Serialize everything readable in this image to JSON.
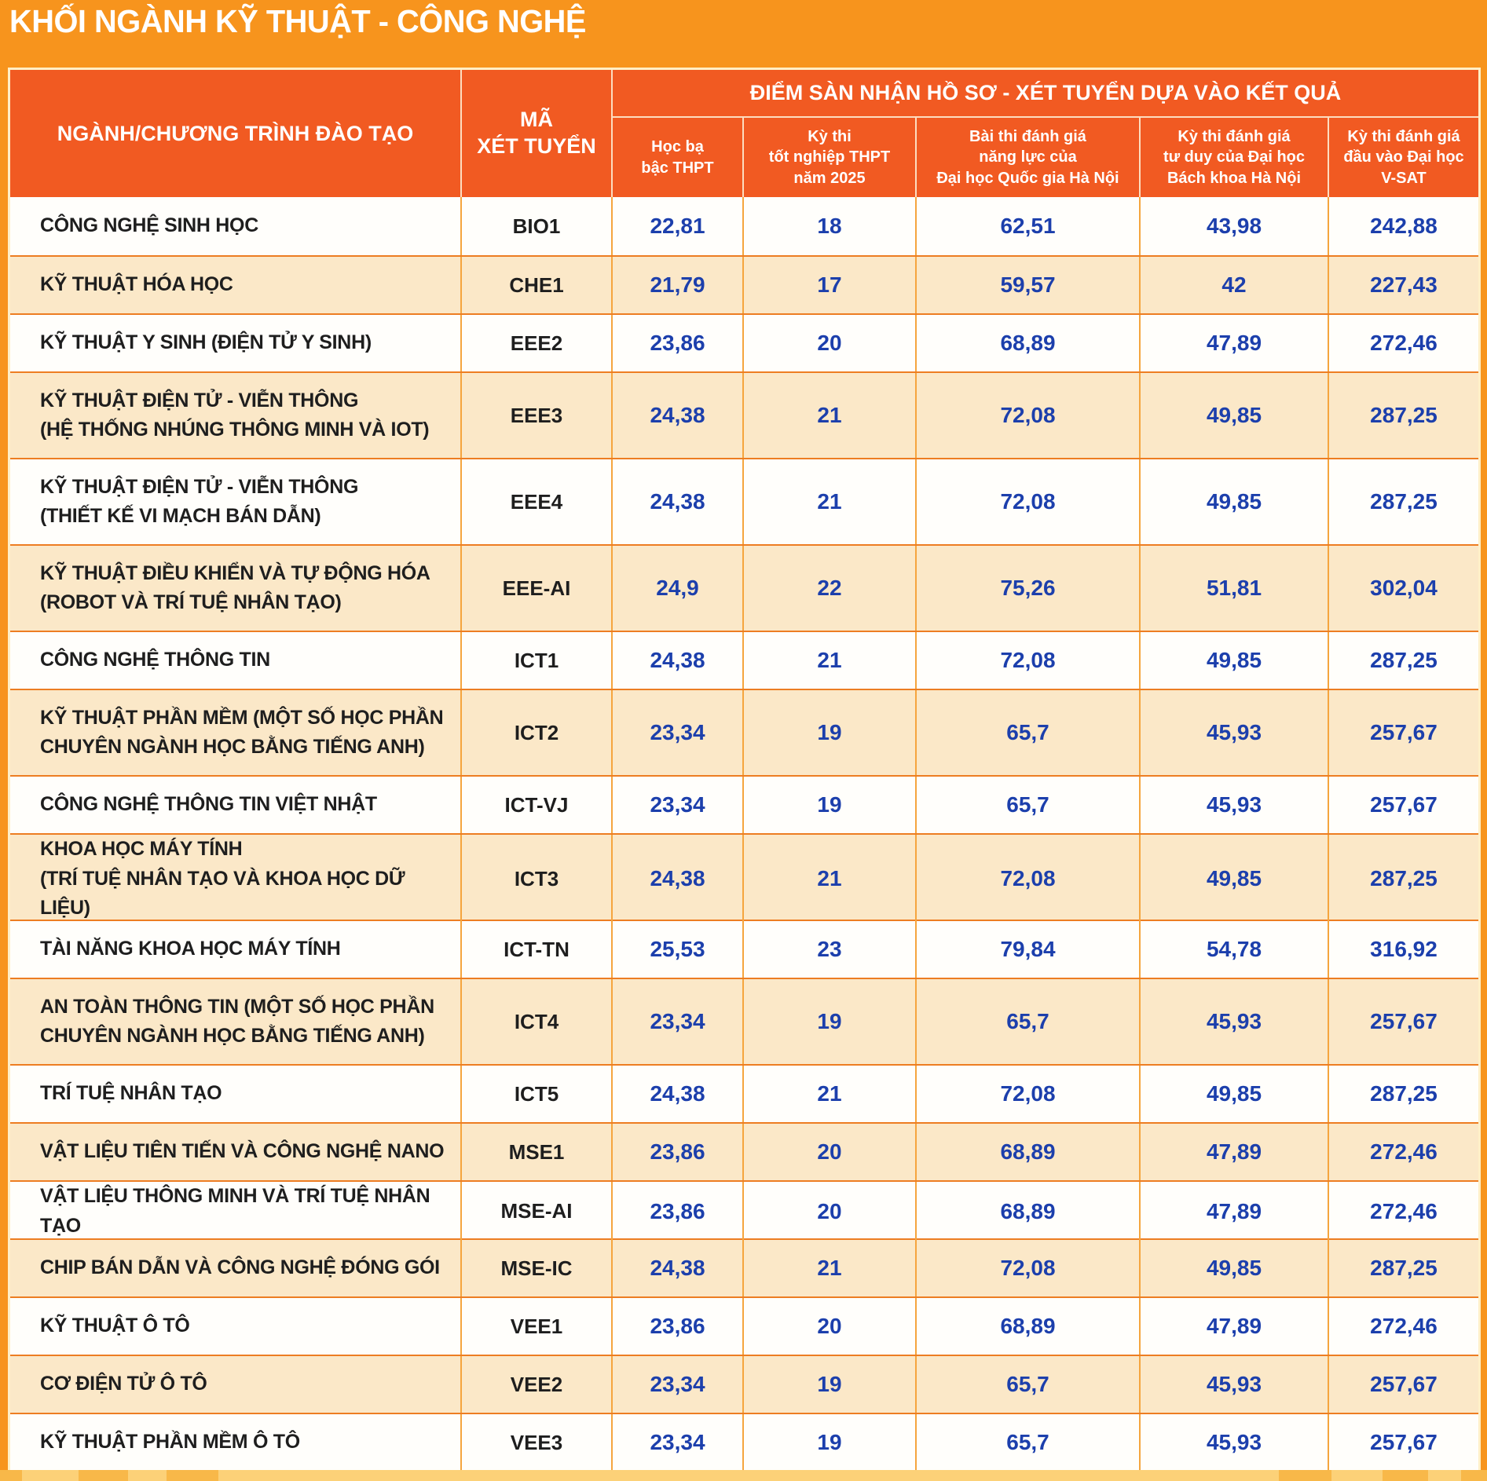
{
  "title": "KHỐI NGÀNH KỸ THUẬT - CÔNG NGHỆ",
  "colors": {
    "page_bg": "#F7941D",
    "header_bg": "#F15A22",
    "row_white": "#FFFEFB",
    "row_cream": "#FBE8C8",
    "value_blue": "#1C3FAC",
    "label_dark": "#1E1E1E",
    "outer_border": "#FFEFC6",
    "row_divider": "#ED7D22",
    "col_divider": "#F5A53E",
    "footer_strip": "#FCD178",
    "footer_tile": "#F8B849"
  },
  "table": {
    "col1_header": "NGÀNH/CHƯƠNG TRÌNH ĐÀO TẠO",
    "col2_header": "MÃ\nXÉT TUYỂN",
    "group_header": "ĐIỂM SÀN NHẬN HỒ SƠ - XÉT TUYỂN DỰA VÀO KẾT QUẢ",
    "score_headers": [
      "Học bạ\nbậc THPT",
      "Kỳ thi\ntốt nghiệp THPT\nnăm 2025",
      "Bài thi đánh giá\nnăng lực của\nĐại học Quốc gia Hà Nội",
      "Kỳ thi đánh giá\ntư duy của Đại học\nBách khoa Hà Nội",
      "Kỳ thi đánh giá\nđầu vào Đại học\nV-SAT"
    ],
    "rows": [
      {
        "program": "CÔNG NGHỆ SINH HỌC",
        "code": "BIO1",
        "scores": [
          "22,81",
          "18",
          "62,51",
          "43,98",
          "242,88"
        ]
      },
      {
        "program": "KỸ THUẬT HÓA HỌC",
        "code": "CHE1",
        "scores": [
          "21,79",
          "17",
          "59,57",
          "42",
          "227,43"
        ]
      },
      {
        "program": "KỸ THUẬT Y SINH (ĐIỆN TỬ Y SINH)",
        "code": "EEE2",
        "scores": [
          "23,86",
          "20",
          "68,89",
          "47,89",
          "272,46"
        ]
      },
      {
        "program": "KỸ THUẬT ĐIỆN TỬ - VIỄN THÔNG\n(HỆ THỐNG NHÚNG THÔNG MINH VÀ IOT)",
        "code": "EEE3",
        "scores": [
          "24,38",
          "21",
          "72,08",
          "49,85",
          "287,25"
        ]
      },
      {
        "program": "KỸ THUẬT ĐIỆN TỬ - VIỄN THÔNG\n(THIẾT KẾ VI MẠCH BÁN DẪN)",
        "code": "EEE4",
        "scores": [
          "24,38",
          "21",
          "72,08",
          "49,85",
          "287,25"
        ]
      },
      {
        "program": "KỸ THUẬT ĐIỀU KHIỂN VÀ TỰ ĐỘNG HÓA\n(ROBOT VÀ TRÍ TUỆ NHÂN TẠO)",
        "code": "EEE-AI",
        "scores": [
          "24,9",
          "22",
          "75,26",
          "51,81",
          "302,04"
        ]
      },
      {
        "program": "CÔNG NGHỆ THÔNG TIN",
        "code": "ICT1",
        "scores": [
          "24,38",
          "21",
          "72,08",
          "49,85",
          "287,25"
        ]
      },
      {
        "program": "KỸ THUẬT PHẦN MỀM (MỘT SỐ HỌC PHẦN\nCHUYÊN NGÀNH HỌC BẰNG TIẾNG ANH)",
        "code": "ICT2",
        "scores": [
          "23,34",
          "19",
          "65,7",
          "45,93",
          "257,67"
        ]
      },
      {
        "program": "CÔNG NGHỆ THÔNG TIN VIỆT NHẬT",
        "code": "ICT-VJ",
        "scores": [
          "23,34",
          "19",
          "65,7",
          "45,93",
          "257,67"
        ]
      },
      {
        "program": "KHOA HỌC MÁY TÍNH\n(TRÍ TUỆ NHÂN TẠO VÀ KHOA HỌC DỮ LIỆU)",
        "code": "ICT3",
        "scores": [
          "24,38",
          "21",
          "72,08",
          "49,85",
          "287,25"
        ]
      },
      {
        "program": "TÀI NĂNG KHOA HỌC MÁY TÍNH",
        "code": "ICT-TN",
        "scores": [
          "25,53",
          "23",
          "79,84",
          "54,78",
          "316,92"
        ]
      },
      {
        "program": "AN TOÀN THÔNG TIN (MỘT SỐ HỌC PHẦN\nCHUYÊN NGÀNH HỌC BẰNG TIẾNG ANH)",
        "code": "ICT4",
        "scores": [
          "23,34",
          "19",
          "65,7",
          "45,93",
          "257,67"
        ]
      },
      {
        "program": "TRÍ TUỆ NHÂN TẠO",
        "code": "ICT5",
        "scores": [
          "24,38",
          "21",
          "72,08",
          "49,85",
          "287,25"
        ]
      },
      {
        "program": "VẬT LIỆU TIÊN TIẾN VÀ CÔNG NGHỆ NANO",
        "code": "MSE1",
        "scores": [
          "23,86",
          "20",
          "68,89",
          "47,89",
          "272,46"
        ]
      },
      {
        "program": "VẬT LIỆU THÔNG MINH VÀ TRÍ TUỆ NHÂN TẠO",
        "code": "MSE-AI",
        "scores": [
          "23,86",
          "20",
          "68,89",
          "47,89",
          "272,46"
        ]
      },
      {
        "program": "CHIP BÁN DẪN VÀ CÔNG NGHỆ ĐÓNG GÓI",
        "code": "MSE-IC",
        "scores": [
          "24,38",
          "21",
          "72,08",
          "49,85",
          "287,25"
        ]
      },
      {
        "program": "KỸ THUẬT Ô TÔ",
        "code": "VEE1",
        "scores": [
          "23,86",
          "20",
          "68,89",
          "47,89",
          "272,46"
        ]
      },
      {
        "program": "CƠ ĐIỆN TỬ Ô TÔ",
        "code": "VEE2",
        "scores": [
          "23,34",
          "19",
          "65,7",
          "45,93",
          "257,67"
        ]
      },
      {
        "program": "KỸ THUẬT PHẦN MỀM Ô TÔ",
        "code": "VEE3",
        "scores": [
          "23,34",
          "19",
          "65,7",
          "45,93",
          "257,67"
        ]
      }
    ]
  }
}
